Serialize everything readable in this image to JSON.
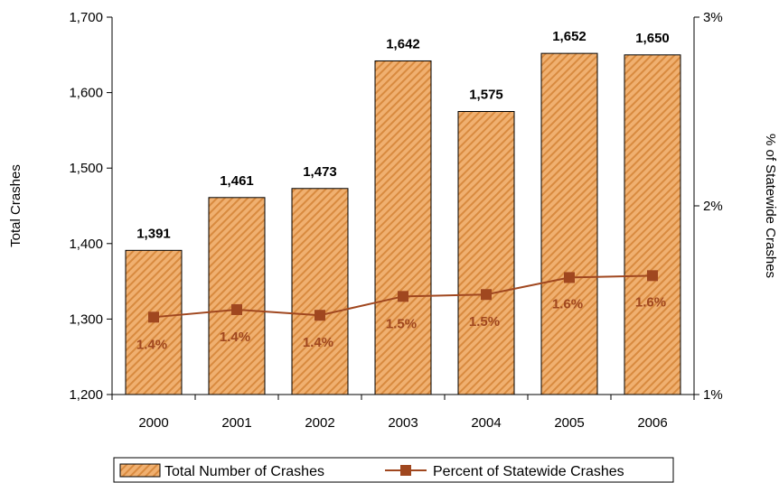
{
  "chart_data": {
    "type": "bar",
    "categories": [
      "2000",
      "2001",
      "2002",
      "2003",
      "2004",
      "2005",
      "2006"
    ],
    "series": [
      {
        "name": "Total Number of Crashes",
        "type": "bar",
        "axis": "left",
        "values": [
          1391,
          1461,
          1473,
          1642,
          1575,
          1652,
          1650
        ],
        "labels": [
          "1,391",
          "1,461",
          "1,473",
          "1,642",
          "1,575",
          "1,652",
          "1,650"
        ],
        "color": "#f0b070"
      },
      {
        "name": "Percent of Statewide Crashes",
        "type": "line",
        "axis": "right",
        "values": [
          1.41,
          1.45,
          1.42,
          1.52,
          1.53,
          1.62,
          1.63
        ],
        "labels": [
          "1.4%",
          "1.4%",
          "1.4%",
          "1.5%",
          "1.5%",
          "1.6%",
          "1.6%"
        ],
        "color": "#a0471f"
      }
    ],
    "ylabel": "Total Crashes",
    "y2label": "% of Statewide Crashes",
    "ylim": [
      1200,
      1700
    ],
    "yticks": [
      "1,200",
      "1,300",
      "1,400",
      "1,500",
      "1,600",
      "1,700"
    ],
    "y2lim": [
      1,
      3
    ],
    "y2ticks": [
      "1%",
      "2%",
      "3%"
    ],
    "grid": false,
    "legend": "bottom"
  }
}
